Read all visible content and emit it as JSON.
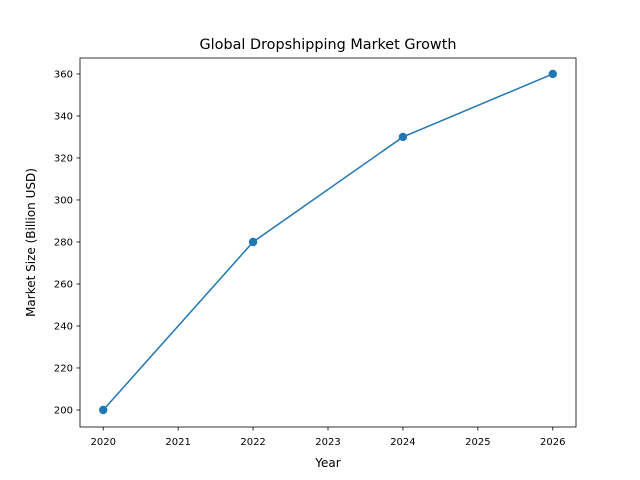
{
  "chart_data": {
    "type": "line",
    "title": "Global Dropshipping Market Growth",
    "xlabel": "Year",
    "ylabel": "Market Size (Billion USD)",
    "x": [
      2020,
      2022,
      2024,
      2026
    ],
    "series": [
      {
        "values": [
          200,
          280,
          330,
          360
        ],
        "color": "#1f77b4",
        "marker": "circle"
      }
    ],
    "xlim": [
      2019.69,
      2026.31
    ],
    "ylim": [
      191.9,
      367.6
    ],
    "xticks": [
      2020,
      2021,
      2022,
      2023,
      2024,
      2025,
      2026
    ],
    "yticks": [
      200,
      220,
      240,
      260,
      280,
      300,
      320,
      340,
      360
    ],
    "grid": false,
    "legend": "none"
  }
}
